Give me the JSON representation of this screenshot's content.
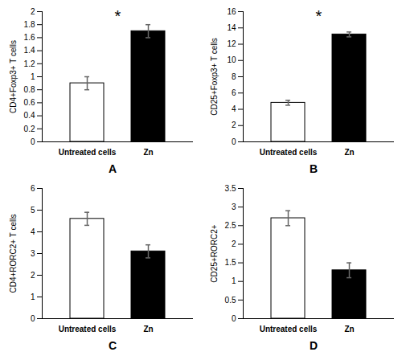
{
  "chart_data": [
    {
      "type": "bar",
      "panel": "A",
      "y_label": "CD4+Foxp3+ T cells",
      "annotation": "*",
      "categories": [
        "Untreated cells",
        "Zn"
      ],
      "values": [
        0.9,
        1.7
      ],
      "errors": [
        0.1,
        0.1
      ],
      "colors": [
        "#ffffff",
        "#000000"
      ],
      "ylim": [
        0,
        2
      ],
      "yticks": [
        0,
        0.2,
        0.4,
        0.6,
        0.8,
        1,
        1.2,
        1.4,
        1.6,
        1.8,
        2
      ],
      "grid": false
    },
    {
      "type": "bar",
      "panel": "B",
      "y_label": "CD25+Foxp3+ T cells",
      "annotation": "*",
      "categories": [
        "Untreated cells",
        "Zn"
      ],
      "values": [
        4.8,
        13.2
      ],
      "errors": [
        0.3,
        0.3
      ],
      "colors": [
        "#ffffff",
        "#000000"
      ],
      "ylim": [
        0,
        16
      ],
      "yticks": [
        0,
        2,
        4,
        6,
        8,
        10,
        12,
        14,
        16
      ],
      "grid": false
    },
    {
      "type": "bar",
      "panel": "C",
      "y_label": "CD4+RORC2+ T cells",
      "categories": [
        "Untreated cells",
        "Zn"
      ],
      "values": [
        4.6,
        3.1
      ],
      "errors": [
        0.3,
        0.3
      ],
      "colors": [
        "#ffffff",
        "#000000"
      ],
      "ylim": [
        0,
        6
      ],
      "yticks": [
        0,
        1,
        2,
        3,
        4,
        5,
        6
      ],
      "grid": false
    },
    {
      "type": "bar",
      "panel": "D",
      "y_label": "CD25+RORC2+",
      "categories": [
        "Untreated cells",
        "Zn"
      ],
      "values": [
        2.7,
        1.3
      ],
      "errors": [
        0.2,
        0.2
      ],
      "colors": [
        "#ffffff",
        "#000000"
      ],
      "ylim": [
        0,
        3.5
      ],
      "yticks": [
        0,
        0.5,
        1,
        1.5,
        2,
        2.5,
        3,
        3.5
      ],
      "grid": false
    }
  ]
}
